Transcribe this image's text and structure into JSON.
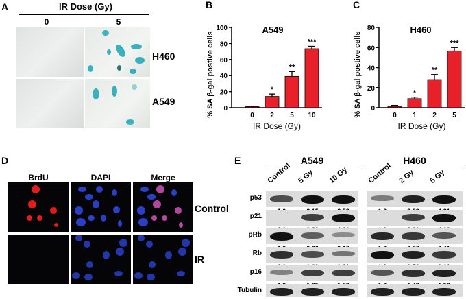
{
  "panels": {
    "a": {
      "label": "A",
      "header": "IR Dose (Gy)",
      "columns": [
        "0",
        "5"
      ],
      "rows": [
        "H460",
        "A549"
      ]
    },
    "d": {
      "label": "D",
      "columns": [
        "BrdU",
        "DAPI",
        "Merge"
      ],
      "rows": [
        "Control",
        "IR"
      ]
    },
    "e": {
      "label": "E",
      "groups": [
        {
          "name": "A549",
          "lanes": [
            "Control",
            "5 Gy",
            "10 Gy"
          ]
        },
        {
          "name": "H460",
          "lanes": [
            "Control",
            "2 Gy",
            "5 Gy"
          ]
        }
      ],
      "proteins": [
        "p53",
        "p21",
        "pRb",
        "Rb",
        "p16",
        "Tubulin"
      ],
      "quant": {
        "A549": [
          [
            "1.0",
            "2.15",
            "2.53"
          ],
          [
            "1.0",
            "2.83",
            "4.06"
          ],
          [
            "1.0",
            "0.36",
            "0.17"
          ],
          [
            "1.0",
            "0.69",
            "0.31"
          ],
          [
            "1.0",
            "1.35",
            "1.52"
          ]
        ],
        "H460": [
          [
            "1.0",
            "3.82",
            "4.81"
          ],
          [
            "1.0",
            "2.90",
            "4.08"
          ],
          [
            "1.0",
            "0.86",
            "0.41"
          ],
          [
            "1.0",
            "0.73",
            "0.61"
          ],
          [
            "1.0",
            "1.49",
            "1.56"
          ]
        ]
      }
    }
  },
  "chart_data": [
    {
      "panel_label": "B",
      "type": "bar",
      "title": "A549",
      "xlabel": "IR Dose (Gy)",
      "ylabel": "% SA β-gal postive cells",
      "categories": [
        "0",
        "2",
        "5",
        "10"
      ],
      "values": [
        1.5,
        14,
        39,
        73.5
      ],
      "errors": [
        0.5,
        3,
        6,
        3
      ],
      "significance": [
        "",
        "*",
        "**",
        "***"
      ],
      "ylim": [
        0,
        100
      ],
      "yticks": [
        "0",
        "20",
        "40",
        "60",
        "80",
        "100"
      ],
      "bar_color": "#e8202a"
    },
    {
      "panel_label": "C",
      "type": "bar",
      "title": "H460",
      "xlabel": "IR Dose (Gy)",
      "ylabel": "% SA β-gal postive cells",
      "categories": [
        "0",
        "1",
        "2",
        "5"
      ],
      "values": [
        1.5,
        9,
        28,
        56.5
      ],
      "errors": [
        0.8,
        1.5,
        5,
        3.5
      ],
      "significance": [
        "",
        "*",
        "**",
        "***"
      ],
      "ylim": [
        0,
        80
      ],
      "yticks": [
        "0",
        "20",
        "40",
        "60",
        "80"
      ],
      "bar_color": "#e8202a"
    }
  ]
}
